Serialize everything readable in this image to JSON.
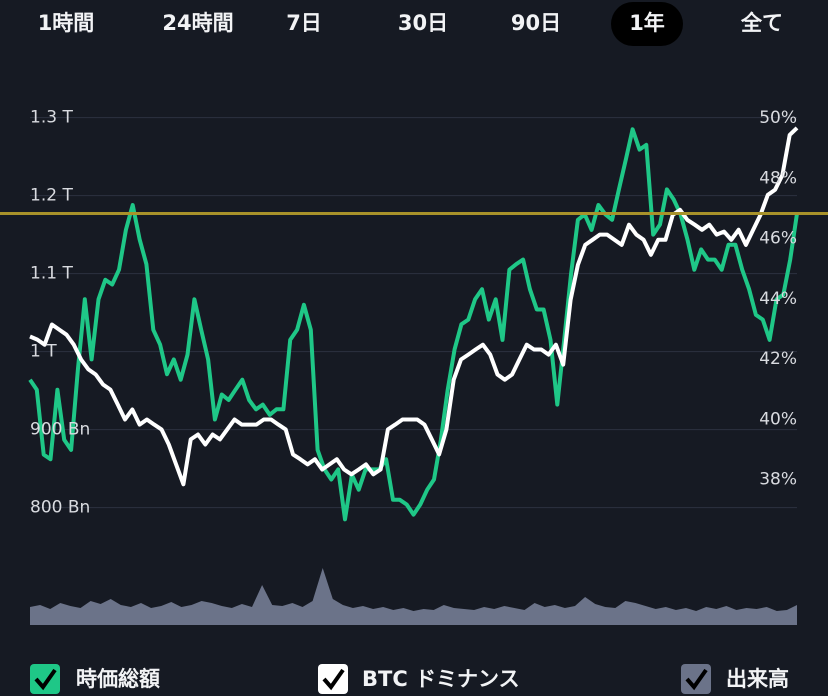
{
  "chart_data": {
    "type": "line",
    "tabs": [
      "1時間",
      "24時間",
      "7日",
      "30日",
      "90日",
      "1年",
      "全て"
    ],
    "selected_tab": 5,
    "background": "#161a23",
    "grid": true,
    "ylim": [
      770,
      1320
    ],
    "yticks": [
      {
        "value": 1300,
        "label": "1.3 T"
      },
      {
        "value": 1200,
        "label": "1.2 T"
      },
      {
        "value": 1100,
        "label": "1.1 T"
      },
      {
        "value": 1000,
        "label": "1 T"
      },
      {
        "value": 900,
        "label": "900 Bn"
      },
      {
        "value": 800,
        "label": "800 Bn"
      }
    ],
    "y2lim": [
      36.3,
      50.53
    ],
    "y2ticks": [
      {
        "value": 50,
        "label": "50%"
      },
      {
        "value": 48,
        "label": "48%"
      },
      {
        "value": 46,
        "label": "46%"
      },
      {
        "value": 44,
        "label": "44%"
      },
      {
        "value": 42,
        "label": "42%"
      },
      {
        "value": 40,
        "label": "40%"
      },
      {
        "value": 38,
        "label": "38%"
      }
    ],
    "vlim": [
      0,
      60
    ],
    "reference_line": {
      "value": 1177,
      "color": "#a8922a"
    },
    "series": [
      {
        "name": "時価総額",
        "color": "#1fc787",
        "axis": "y",
        "values": [
          964,
          951,
          868,
          862,
          951,
          887,
          874,
          977,
          1067,
          990,
          1067,
          1092,
          1086,
          1105,
          1156,
          1188,
          1144,
          1112,
          1028,
          1009,
          971,
          990,
          964,
          996,
          1067,
          1028,
          990,
          913,
          945,
          938,
          951,
          964,
          938,
          926,
          932,
          919,
          926,
          926,
          1015,
          1028,
          1060,
          1028,
          874,
          849,
          836,
          849,
          785,
          842,
          823,
          849,
          849,
          849,
          862,
          810,
          810,
          804,
          791,
          804,
          823,
          836,
          887,
          951,
          1003,
          1035,
          1041,
          1067,
          1080,
          1041,
          1067,
          1015,
          1105,
          1112,
          1118,
          1080,
          1054,
          1054,
          1015,
          932,
          1015,
          1099,
          1169,
          1176,
          1156,
          1188,
          1176,
          1169,
          1208,
          1246,
          1285,
          1259,
          1265,
          1150,
          1163,
          1208,
          1195,
          1176,
          1144,
          1105,
          1131,
          1118,
          1118,
          1105,
          1137,
          1137,
          1105,
          1080,
          1047,
          1041,
          1015,
          1067,
          1073,
          1118,
          1177
        ]
      },
      {
        "name": "BTC ドミナンス",
        "color": "#ffffff",
        "axis": "y2",
        "values": [
          42.75,
          42.65,
          42.48,
          43.15,
          42.98,
          42.81,
          42.48,
          41.99,
          41.66,
          41.49,
          41.16,
          40.99,
          40.5,
          40.0,
          40.33,
          39.83,
          40.0,
          39.83,
          39.67,
          39.17,
          38.51,
          37.85,
          39.34,
          39.5,
          39.17,
          39.5,
          39.34,
          39.67,
          40.0,
          39.83,
          39.83,
          39.83,
          40.0,
          40.0,
          39.83,
          39.67,
          38.84,
          38.68,
          38.51,
          38.68,
          38.34,
          38.51,
          38.68,
          38.34,
          38.18,
          38.34,
          38.51,
          38.18,
          38.34,
          39.67,
          39.83,
          40.0,
          40.0,
          40.0,
          39.83,
          39.34,
          38.84,
          39.67,
          41.32,
          41.99,
          42.15,
          42.32,
          42.48,
          42.15,
          41.49,
          41.32,
          41.49,
          41.99,
          42.48,
          42.32,
          42.32,
          42.15,
          42.48,
          41.82,
          43.97,
          45.13,
          45.79,
          45.96,
          46.13,
          46.13,
          45.96,
          45.79,
          46.46,
          46.13,
          45.96,
          45.46,
          45.96,
          45.96,
          46.79,
          46.95,
          46.62,
          46.46,
          46.29,
          46.46,
          46.13,
          46.23,
          45.96,
          46.29,
          45.79,
          46.29,
          46.79,
          47.45,
          47.62,
          48.11,
          49.44,
          49.67
        ]
      },
      {
        "name": "出来高",
        "color": "#6b7389",
        "axis": "v",
        "values": [
          18,
          20,
          16,
          22,
          19,
          17,
          24,
          21,
          26,
          20,
          18,
          22,
          17,
          19,
          23,
          18,
          20,
          24,
          22,
          19,
          17,
          21,
          18,
          40,
          20,
          19,
          22,
          18,
          24,
          57,
          26,
          20,
          17,
          19,
          16,
          18,
          15,
          17,
          14,
          16,
          15,
          20,
          17,
          16,
          15,
          18,
          16,
          19,
          17,
          15,
          22,
          18,
          20,
          17,
          19,
          28,
          21,
          18,
          17,
          24,
          22,
          19,
          16,
          18,
          15,
          17,
          14,
          18,
          16,
          19,
          15,
          17,
          16,
          18,
          14,
          15,
          20
        ]
      }
    ]
  }
}
